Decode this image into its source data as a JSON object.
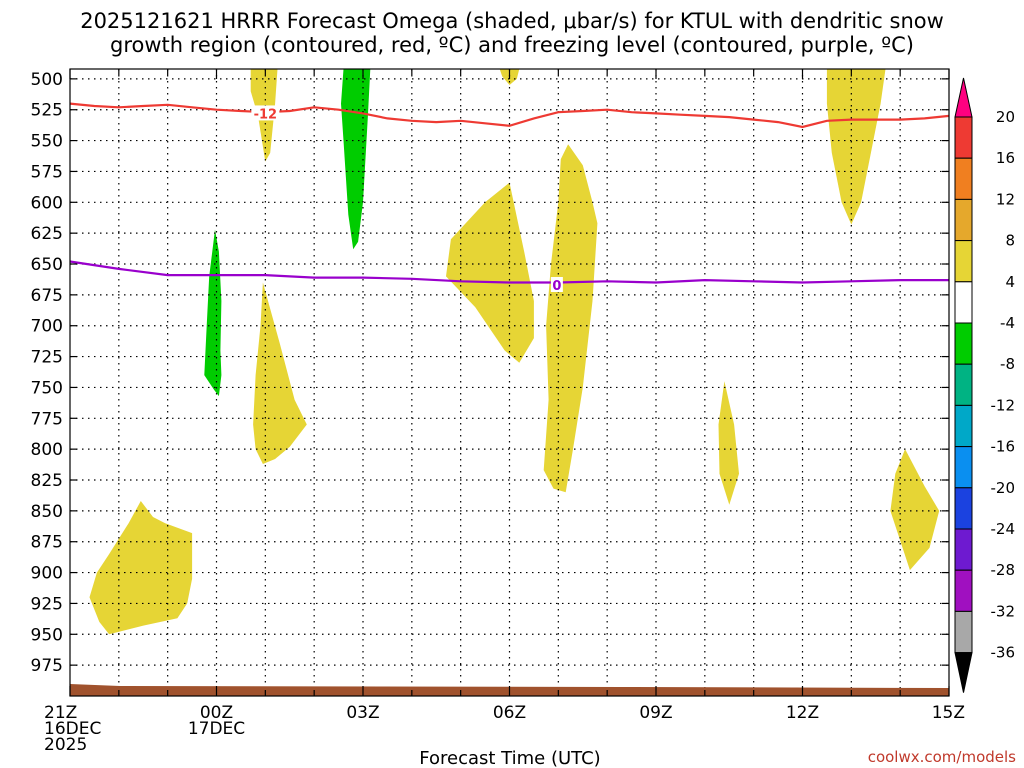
{
  "chart_data": {
    "type": "time-height contour",
    "title": [
      "2025121621 HRRR Forecast Omega (shaded, μbar/s) for KTUL with dendritic snow",
      "growth region (contoured, red, ºC) and freezing level (contoured, purple, ºC)"
    ],
    "xlabel": "Forecast Time (UTC)",
    "credit": "coolwx.com/models",
    "x_ticks": [
      {
        "h": 0,
        "lines": [
          "21Z",
          "16DEC",
          "2025"
        ]
      },
      {
        "h": 3,
        "lines": [
          "00Z",
          "17DEC"
        ]
      },
      {
        "h": 6,
        "lines": [
          "03Z"
        ]
      },
      {
        "h": 9,
        "lines": [
          "06Z"
        ]
      },
      {
        "h": 12,
        "lines": [
          "09Z"
        ]
      },
      {
        "h": 15,
        "lines": [
          "12Z"
        ]
      },
      {
        "h": 18,
        "lines": [
          "15Z"
        ]
      }
    ],
    "xlim": [
      0,
      18
    ],
    "y_ticks": [
      500,
      525,
      550,
      575,
      600,
      625,
      650,
      675,
      700,
      725,
      750,
      775,
      800,
      825,
      850,
      875,
      900,
      925,
      950,
      975
    ],
    "ylim": [
      492,
      1000
    ],
    "colorbar": {
      "labels": [
        20,
        16,
        12,
        8,
        4,
        -4,
        -8,
        -12,
        -16,
        -20,
        -24,
        -28,
        -32,
        -36
      ],
      "colors": [
        "#ff0080",
        "#ee3a33",
        "#f07f20",
        "#e5a82c",
        "#e6d535",
        "#ffffff",
        "#00cc00",
        "#00b383",
        "#00a8c8",
        "#0a8ff0",
        "#1b42e0",
        "#6e1ad0",
        "#a010c0",
        "#a8a8a8",
        "#000000"
      ]
    },
    "lines": [
      {
        "name": "dendritic snow growth",
        "label": "-12",
        "label_at": [
          4.0,
          528
        ],
        "color": "#ee3a33",
        "points": [
          [
            0,
            520
          ],
          [
            0.5,
            522
          ],
          [
            1,
            523
          ],
          [
            1.5,
            522
          ],
          [
            2,
            521
          ],
          [
            2.5,
            523
          ],
          [
            3,
            525
          ],
          [
            3.5,
            526
          ],
          [
            4,
            527
          ],
          [
            4.5,
            526
          ],
          [
            5,
            523
          ],
          [
            5.5,
            525
          ],
          [
            6,
            528
          ],
          [
            6.5,
            532
          ],
          [
            7,
            534
          ],
          [
            7.5,
            535
          ],
          [
            8,
            534
          ],
          [
            8.5,
            536
          ],
          [
            9,
            538
          ],
          [
            9.5,
            532
          ],
          [
            10,
            527
          ],
          [
            10.5,
            526
          ],
          [
            11,
            525
          ],
          [
            11.5,
            527
          ],
          [
            12,
            528
          ],
          [
            12.5,
            529
          ],
          [
            13,
            530
          ],
          [
            13.5,
            531
          ],
          [
            14,
            533
          ],
          [
            14.5,
            535
          ],
          [
            15,
            539
          ],
          [
            15.5,
            534
          ],
          [
            16,
            533
          ],
          [
            16.5,
            533
          ],
          [
            17,
            533
          ],
          [
            17.5,
            532
          ],
          [
            18,
            530
          ]
        ]
      },
      {
        "name": "freezing level",
        "label": "0",
        "label_at": [
          9.97,
          667
        ],
        "color": "#9900cc",
        "points": [
          [
            0,
            648
          ],
          [
            1,
            654
          ],
          [
            2,
            659
          ],
          [
            3,
            659
          ],
          [
            4,
            659
          ],
          [
            5,
            661
          ],
          [
            6,
            661
          ],
          [
            7,
            662
          ],
          [
            8,
            664
          ],
          [
            9,
            665
          ],
          [
            10,
            665
          ],
          [
            11,
            664
          ],
          [
            12,
            665
          ],
          [
            13,
            663
          ],
          [
            14,
            664
          ],
          [
            15,
            665
          ],
          [
            16,
            664
          ],
          [
            17,
            663
          ],
          [
            18,
            663
          ]
        ]
      }
    ],
    "areas": [
      {
        "level": 4,
        "color": "#e6d535",
        "points": [
          [
            3.7,
            492
          ],
          [
            4.25,
            492
          ],
          [
            4.2,
            520
          ],
          [
            4.1,
            560
          ],
          [
            4.0,
            567
          ],
          [
            3.85,
            530
          ],
          [
            3.7,
            510
          ]
        ]
      },
      {
        "level": -4,
        "color": "#00cc00",
        "points": [
          [
            5.6,
            492
          ],
          [
            6.15,
            492
          ],
          [
            6.1,
            530
          ],
          [
            6.0,
            600
          ],
          [
            5.9,
            632
          ],
          [
            5.8,
            638
          ],
          [
            5.7,
            610
          ],
          [
            5.6,
            550
          ],
          [
            5.55,
            520
          ]
        ]
      },
      {
        "level": 4,
        "color": "#e6d535",
        "points": [
          [
            8.8,
            492
          ],
          [
            9.2,
            492
          ],
          [
            9.15,
            500
          ],
          [
            9.0,
            505
          ],
          [
            8.85,
            498
          ]
        ]
      },
      {
        "level": 4,
        "color": "#e6d535",
        "points": [
          [
            15.5,
            492
          ],
          [
            16.7,
            492
          ],
          [
            16.6,
            520
          ],
          [
            16.4,
            560
          ],
          [
            16.2,
            600
          ],
          [
            16.0,
            618
          ],
          [
            15.8,
            600
          ],
          [
            15.6,
            560
          ],
          [
            15.5,
            520
          ]
        ]
      },
      {
        "level": -4,
        "color": "#00cc00",
        "points": [
          [
            2.97,
            622
          ],
          [
            3.05,
            640
          ],
          [
            3.1,
            680
          ],
          [
            3.08,
            720
          ],
          [
            3.1,
            740
          ],
          [
            3.05,
            757
          ],
          [
            2.95,
            752
          ],
          [
            2.75,
            740
          ],
          [
            2.8,
            700
          ],
          [
            2.85,
            660
          ]
        ]
      },
      {
        "level": 4,
        "color": "#e6d535",
        "points": [
          [
            9.0,
            584
          ],
          [
            9.3,
            640
          ],
          [
            9.5,
            680
          ],
          [
            9.5,
            710
          ],
          [
            9.2,
            730
          ],
          [
            8.9,
            720
          ],
          [
            8.3,
            685
          ],
          [
            7.7,
            660
          ],
          [
            7.8,
            630
          ],
          [
            8.5,
            600
          ]
        ]
      },
      {
        "level": 4,
        "color": "#e6d535",
        "points": [
          [
            10.2,
            553
          ],
          [
            10.5,
            570
          ],
          [
            10.7,
            600
          ],
          [
            10.8,
            617
          ],
          [
            10.7,
            680
          ],
          [
            10.5,
            750
          ],
          [
            10.3,
            800
          ],
          [
            10.15,
            835
          ],
          [
            9.9,
            832
          ],
          [
            9.7,
            817
          ],
          [
            9.8,
            760
          ],
          [
            9.75,
            700
          ],
          [
            9.85,
            650
          ],
          [
            10.0,
            600
          ],
          [
            10.05,
            565
          ]
        ]
      },
      {
        "level": 4,
        "color": "#e6d535",
        "points": [
          [
            3.95,
            665
          ],
          [
            4.3,
            715
          ],
          [
            4.6,
            760
          ],
          [
            4.85,
            780
          ],
          [
            4.5,
            798
          ],
          [
            4.2,
            808
          ],
          [
            3.95,
            812
          ],
          [
            3.8,
            800
          ],
          [
            3.75,
            780
          ],
          [
            3.8,
            740
          ],
          [
            3.9,
            700
          ]
        ]
      },
      {
        "level": 4,
        "color": "#e6d535",
        "points": [
          [
            13.4,
            745
          ],
          [
            13.6,
            780
          ],
          [
            13.7,
            820
          ],
          [
            13.5,
            845
          ],
          [
            13.3,
            820
          ],
          [
            13.28,
            780
          ]
        ]
      },
      {
        "level": 4,
        "color": "#e6d535",
        "points": [
          [
            17.1,
            800
          ],
          [
            17.5,
            830
          ],
          [
            17.8,
            850
          ],
          [
            17.6,
            880
          ],
          [
            17.2,
            898
          ],
          [
            17.05,
            880
          ],
          [
            16.8,
            850
          ],
          [
            16.9,
            820
          ]
        ]
      },
      {
        "level": 4,
        "color": "#e6d535",
        "points": [
          [
            1.45,
            842
          ],
          [
            1.7,
            855
          ],
          [
            1.95,
            860
          ],
          [
            2.5,
            868
          ],
          [
            2.5,
            905
          ],
          [
            2.4,
            925
          ],
          [
            2.2,
            937
          ],
          [
            1.5,
            943
          ],
          [
            0.8,
            950
          ],
          [
            0.6,
            940
          ],
          [
            0.4,
            920
          ],
          [
            0.55,
            900
          ],
          [
            0.8,
            885
          ],
          [
            1.2,
            860
          ]
        ]
      }
    ]
  }
}
